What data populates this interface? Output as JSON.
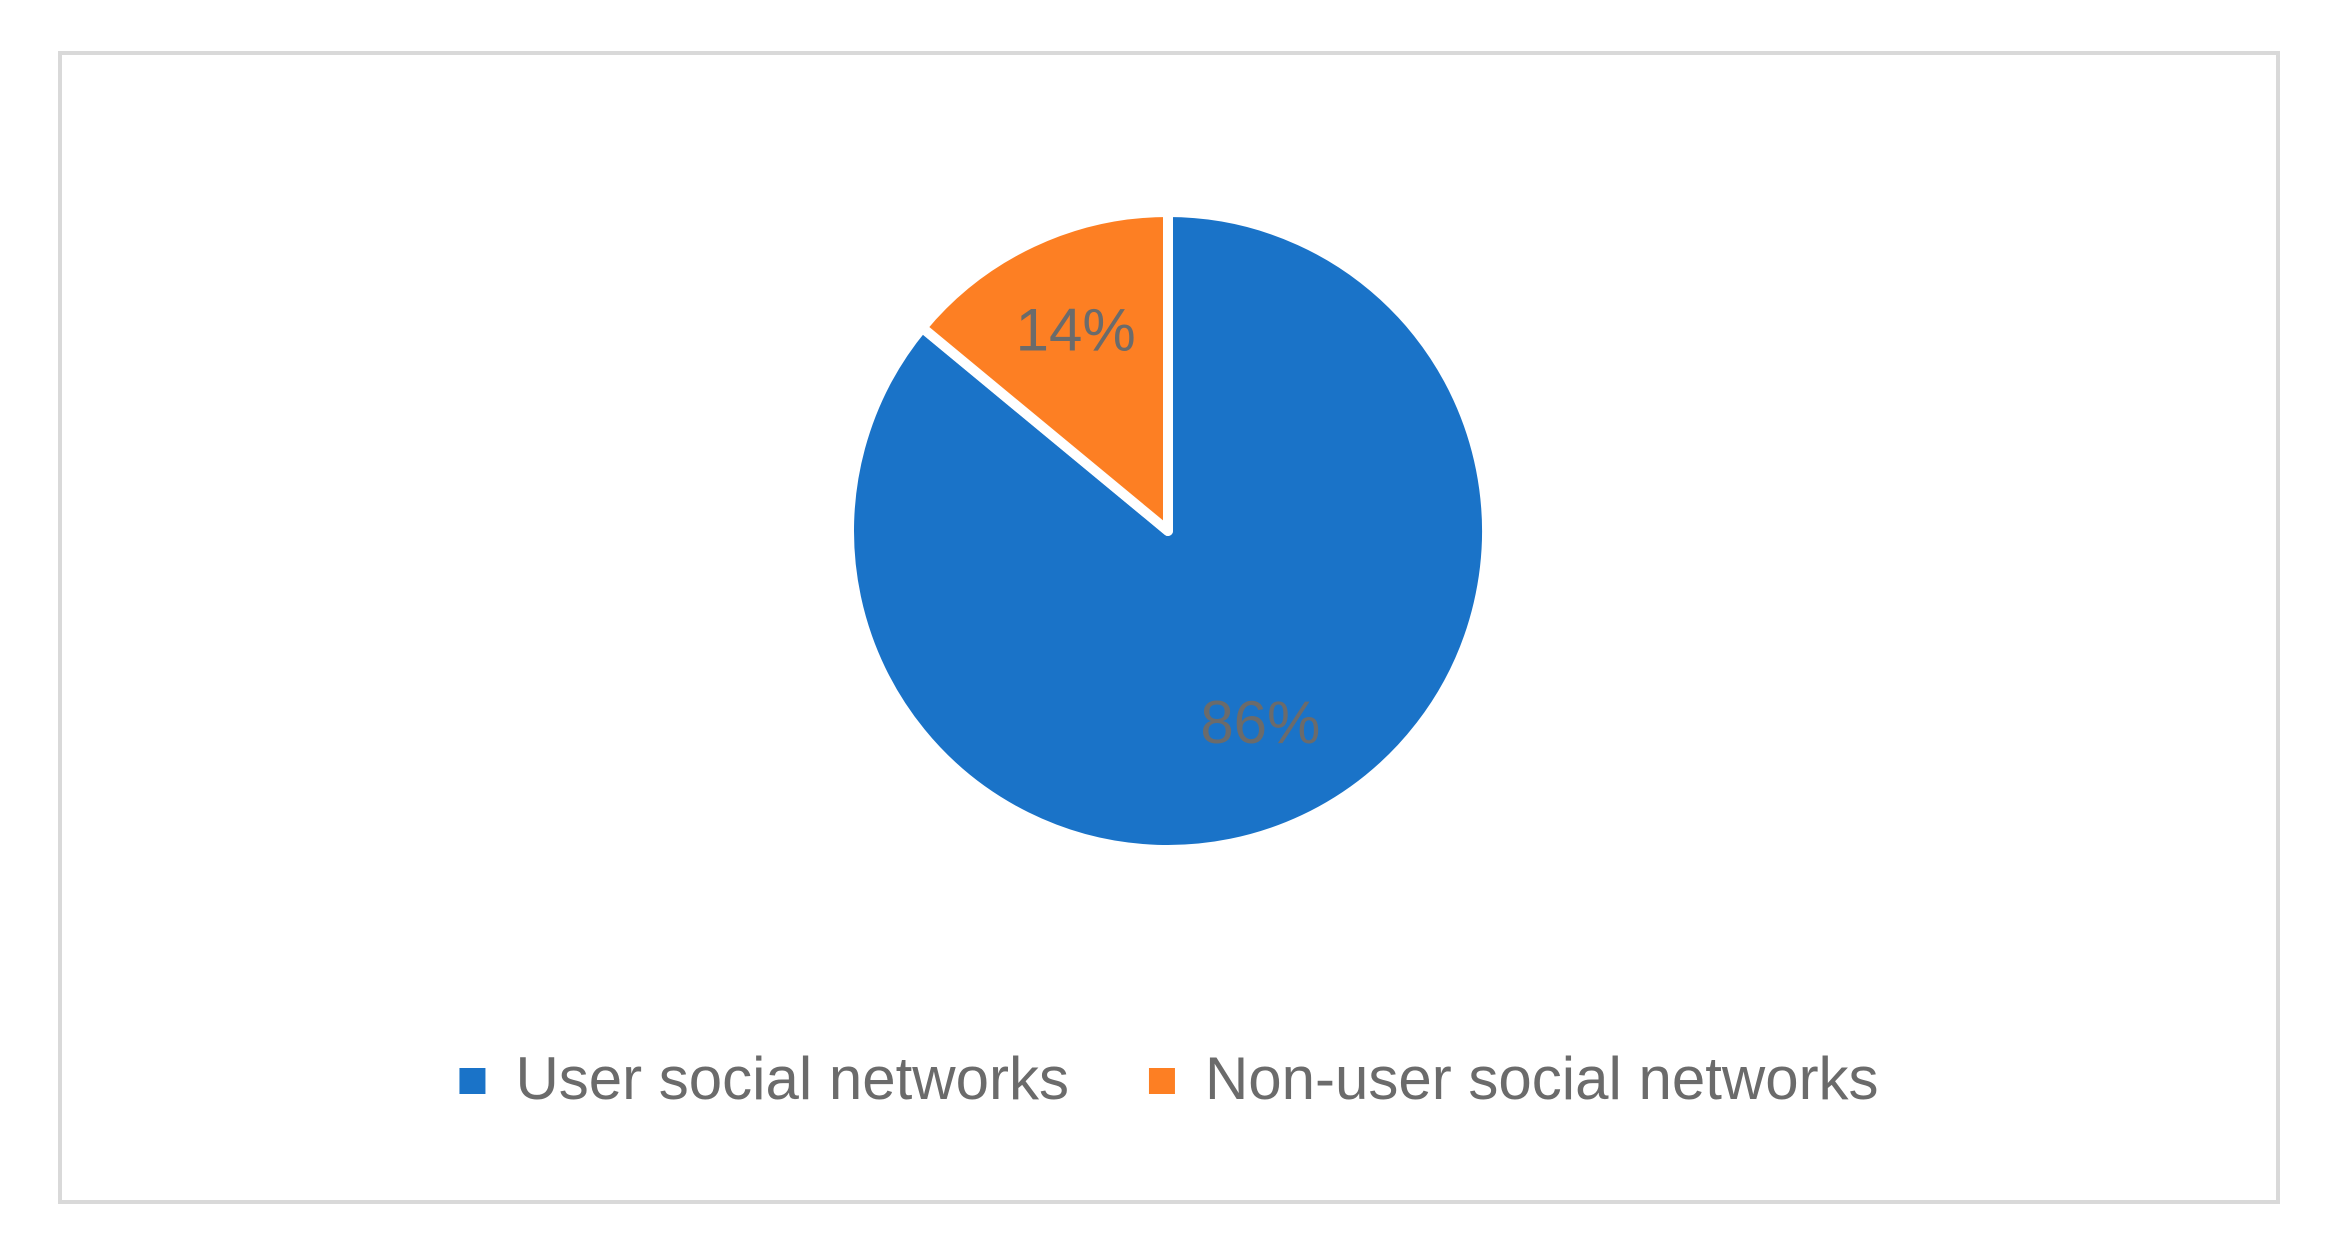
{
  "chart_data": {
    "type": "pie",
    "categories": [
      "User social networks",
      "Non-user social networks"
    ],
    "values": [
      86,
      14
    ],
    "value_labels": [
      "86%",
      "14%"
    ],
    "colors": [
      "#1a73c8",
      "#fd7f23"
    ],
    "legend": "bottom"
  }
}
